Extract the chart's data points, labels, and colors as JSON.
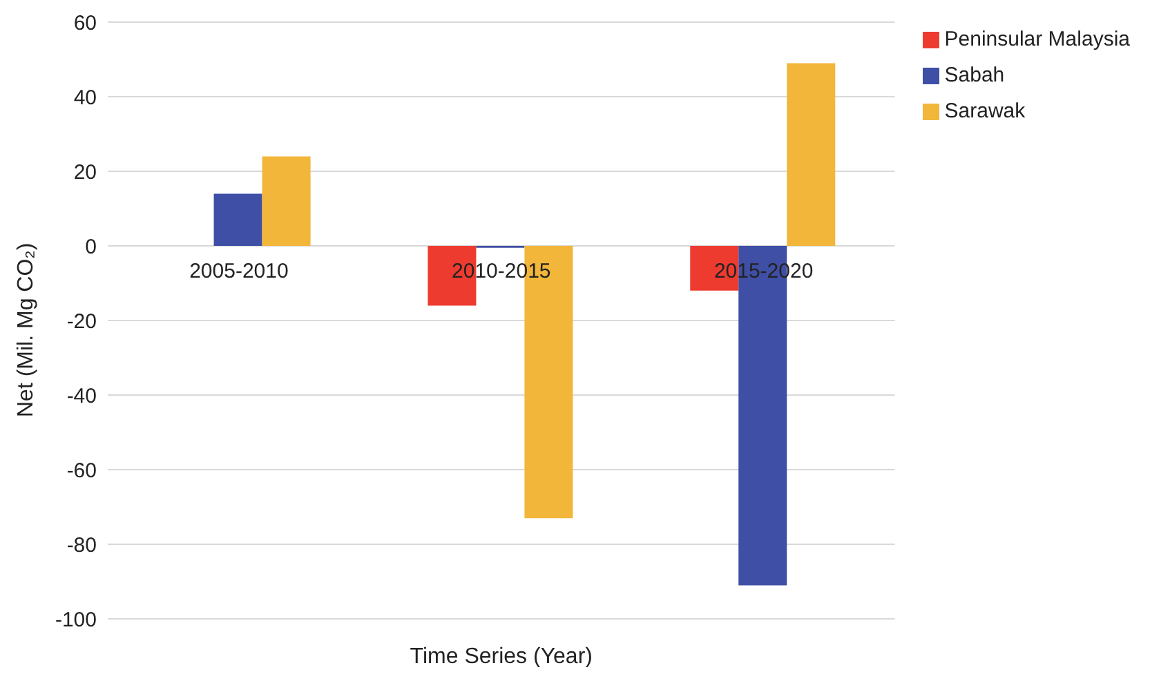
{
  "chart_data": {
    "type": "bar",
    "xlabel": "Time Series (Year)",
    "ylabel": "Net (Mil. Mg CO₂)",
    "categories": [
      "2005-2010",
      "2010-2015",
      "2015-2020"
    ],
    "series": [
      {
        "name": "Peninsular Malaysia",
        "color": "#ee3b2f",
        "values": [
          0,
          -16,
          -12
        ]
      },
      {
        "name": "Sabah",
        "color": "#3f4fa5",
        "values": [
          14,
          -0.5,
          -91
        ]
      },
      {
        "name": "Sarawak",
        "color": "#f2b63a",
        "values": [
          24,
          -73,
          49
        ]
      }
    ],
    "ylim": [
      -100,
      60
    ],
    "yticks": [
      -100,
      -80,
      -60,
      -40,
      -20,
      0,
      20,
      40,
      60
    ],
    "grid": "y",
    "legend": "top right"
  }
}
